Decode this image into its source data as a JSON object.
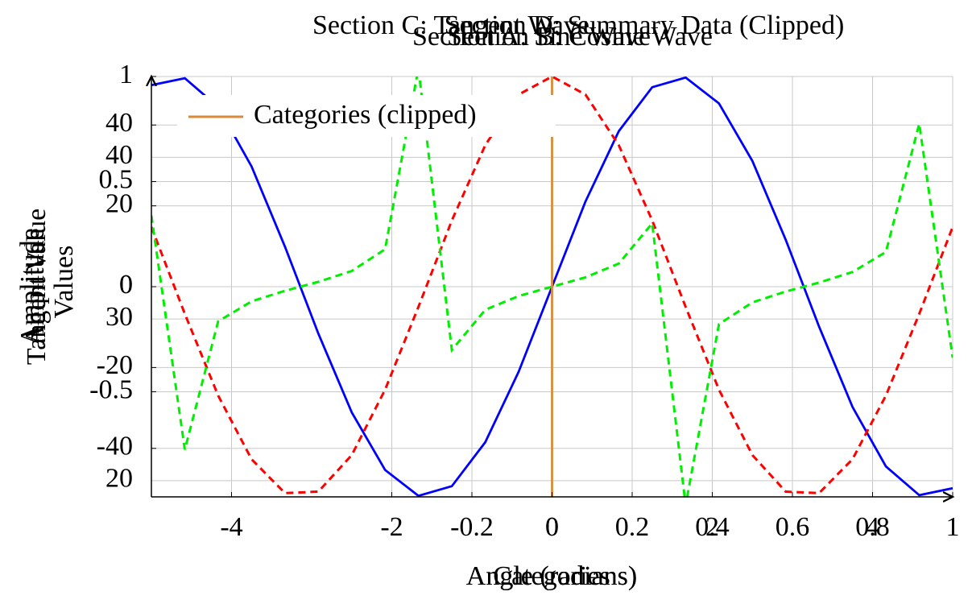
{
  "chart_data": [
    {
      "type": "line",
      "title": "Section A: Sine Wave",
      "xlabel": "Angle (radians)",
      "ylabel": "Amplitude",
      "x": [
        -5,
        -4.583,
        -4.167,
        -3.75,
        -3.333,
        -2.917,
        -2.5,
        -2.083,
        -1.667,
        -1.25,
        -0.833,
        -0.417,
        0,
        0.417,
        0.833,
        1.25,
        1.667,
        2.083,
        2.5,
        2.917,
        3.333,
        3.75,
        4.167,
        4.583,
        5
      ],
      "series": [
        {
          "color": "#0000ff",
          "dashed": false,
          "values": [
            0.959,
            0.992,
            0.855,
            0.572,
            0.19,
            -0.223,
            -0.598,
            -0.872,
            -0.995,
            -0.949,
            -0.74,
            -0.405,
            0,
            0.405,
            0.74,
            0.949,
            0.995,
            0.872,
            0.598,
            0.223,
            -0.19,
            -0.572,
            -0.855,
            -0.992,
            -0.959
          ]
        }
      ],
      "xlim": [
        -5,
        5
      ],
      "ylim": [
        -1,
        1
      ],
      "xticks": [
        -4,
        -2,
        0,
        2,
        4
      ],
      "yticks": [
        -0.5,
        0,
        0.5,
        1
      ],
      "grid": true
    },
    {
      "type": "line",
      "title": "Section B: Cosine Wave",
      "xlabel": "Angle (radians)",
      "ylabel": "Amplitude",
      "x": [
        -5,
        -4.583,
        -4.167,
        -3.75,
        -3.333,
        -2.917,
        -2.5,
        -2.083,
        -1.667,
        -1.25,
        -0.833,
        -0.417,
        0,
        0.417,
        0.833,
        1.25,
        1.667,
        2.083,
        2.5,
        2.917,
        3.333,
        3.75,
        4.167,
        4.583,
        5
      ],
      "series": [
        {
          "color": "#ff0000",
          "dashed": true,
          "values": [
            0.284,
            -0.129,
            -0.518,
            -0.821,
            -0.982,
            -0.975,
            -0.801,
            -0.49,
            -0.096,
            0.315,
            0.673,
            0.914,
            1,
            0.914,
            0.673,
            0.315,
            -0.096,
            -0.49,
            -0.801,
            -0.975,
            -0.982,
            -0.821,
            -0.518,
            -0.129,
            0.284
          ]
        }
      ],
      "xlim": [
        -5,
        5
      ],
      "ylim": [
        -1,
        1
      ]
    },
    {
      "type": "line",
      "title": "Section C: Tangent Wave",
      "ylabel": "Tangent Value",
      "x": [
        -5,
        -4.583,
        -4.167,
        -3.75,
        -3.333,
        -2.917,
        -2.5,
        -2.083,
        -1.667,
        -1.25,
        -0.833,
        -0.417,
        0,
        0.417,
        0.833,
        1.25,
        1.667,
        2.083,
        2.5,
        2.917,
        3.333,
        3.75,
        4.167,
        4.583,
        5
      ],
      "series": [
        {
          "color": "#00ee00",
          "dashed": true,
          "values": [
            3.381,
            -7.75,
            -1.65,
            -0.697,
            -0.194,
            0.228,
            0.747,
            1.78,
            10.4,
            -3.01,
            -1.1,
            -0.443,
            0,
            0.443,
            1.1,
            3.01,
            -10.4,
            -1.78,
            -0.747,
            -0.228,
            0.194,
            0.697,
            1.65,
            7.75,
            -3.381
          ]
        }
      ],
      "xlim": [
        -5,
        5
      ],
      "ylim": [
        -10,
        10
      ]
    },
    {
      "type": "line",
      "title": "Section D: Summary Data (Clipped)",
      "xlabel": "Categories",
      "ylabel": "Values",
      "x": [
        0,
        0
      ],
      "series": [
        {
          "name": "Categories (clipped)",
          "color": "#d98a3a",
          "dashed": false,
          "values": [
            -52,
            52
          ]
        }
      ],
      "xlim": [
        -1,
        1
      ],
      "ylim": [
        -52,
        52
      ],
      "xticks": [
        -0.2,
        0,
        0.2,
        0.4,
        0.6,
        0.8,
        1
      ],
      "yticks": [
        -40,
        -20,
        0,
        20,
        40
      ],
      "y2lim": [
        19,
        45
      ],
      "y2ticks": [
        20,
        30,
        40
      ],
      "grid": true,
      "legend": "upper left"
    }
  ]
}
